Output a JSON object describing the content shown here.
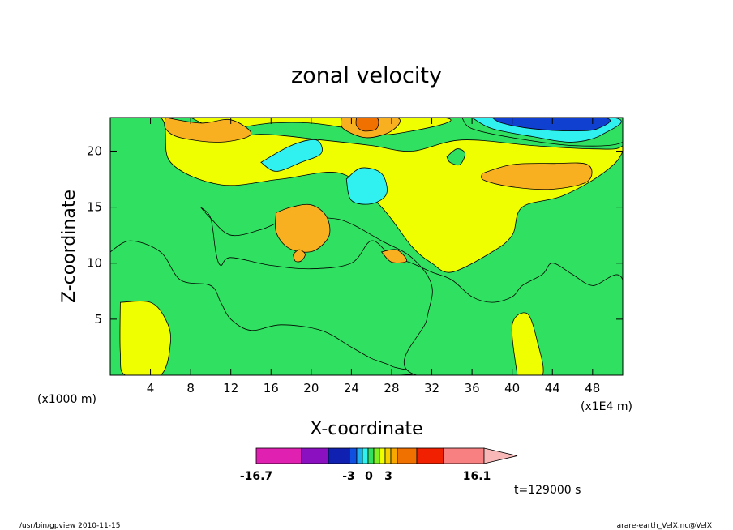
{
  "chart_data": {
    "type": "heatmap",
    "title": "zonal velocity",
    "xlabel": "X-coordinate",
    "ylabel": "Z-coordinate",
    "x_unit_label": "(x1000 m)",
    "x_scale_label": "(x1E4 m)",
    "xlim": [
      0,
      51
    ],
    "ylim": [
      0,
      23
    ],
    "xticks": [
      4,
      8,
      12,
      16,
      20,
      24,
      28,
      32,
      36,
      40,
      44,
      48
    ],
    "yticks": [
      5,
      10,
      15,
      20
    ],
    "time_label": "t=129000 s",
    "colorbar": {
      "min_label": "-16.7",
      "max_label": "16.1",
      "tick_labels": [
        "-3",
        "0",
        "3"
      ],
      "colors": [
        "#e020b0",
        "#8a10c0",
        "#1020b0",
        "#1050e0",
        "#20b0f0",
        "#30f0f0",
        "#30e060",
        "#80f020",
        "#f0ff00",
        "#f8d000",
        "#f8a800",
        "#f07000",
        "#f02000",
        "#f88080",
        "#f8b8b8"
      ]
    },
    "regions": [
      {
        "color": "#30e060",
        "pts": [
          [
            0,
            23
          ],
          [
            51,
            23
          ],
          [
            51,
            0
          ],
          [
            0,
            0
          ]
        ]
      },
      {
        "color": "#f0ff00",
        "pts": [
          [
            0,
            23
          ],
          [
            5,
            23
          ],
          [
            6,
            19
          ],
          [
            11,
            17
          ],
          [
            17,
            17.5
          ],
          [
            23,
            18
          ],
          [
            27,
            15
          ],
          [
            30,
            11.5
          ],
          [
            32,
            10
          ],
          [
            34,
            9.2
          ],
          [
            38,
            11
          ],
          [
            40,
            12.5
          ],
          [
            41,
            15
          ],
          [
            45,
            16
          ],
          [
            49,
            18
          ],
          [
            51,
            20
          ],
          [
            51,
            23
          ],
          [
            0,
            23
          ]
        ]
      },
      {
        "color": "#30e060",
        "pts": [
          [
            6,
            23
          ],
          [
            10,
            21
          ],
          [
            15,
            21.5
          ],
          [
            21,
            21
          ],
          [
            26,
            20.5
          ],
          [
            30,
            20
          ],
          [
            35,
            21
          ],
          [
            42,
            20.5
          ],
          [
            48,
            20.2
          ],
          [
            51,
            20.5
          ],
          [
            51,
            23
          ],
          [
            6,
            23
          ]
        ]
      },
      {
        "color": "#f0ff00",
        "pts": [
          [
            8,
            23
          ],
          [
            11,
            22
          ],
          [
            16,
            22.5
          ],
          [
            20,
            22.5
          ],
          [
            24,
            22
          ],
          [
            28,
            21.5
          ],
          [
            33,
            23
          ],
          [
            8,
            23
          ]
        ]
      },
      {
        "color": "#f8b020",
        "pts": [
          [
            5.5,
            23
          ],
          [
            9,
            22.5
          ],
          [
            12,
            22.8
          ],
          [
            14,
            21.5
          ],
          [
            11,
            20.8
          ],
          [
            7,
            21.2
          ],
          [
            5.5,
            22
          ],
          [
            5.5,
            23
          ]
        ]
      },
      {
        "color": "#f8b020",
        "pts": [
          [
            23,
            23
          ],
          [
            28.5,
            23
          ],
          [
            28,
            21.8
          ],
          [
            25.5,
            21.2
          ],
          [
            23.2,
            22
          ],
          [
            23,
            23
          ]
        ]
      },
      {
        "color": "#f07000",
        "pts": [
          [
            24.5,
            23
          ],
          [
            26.5,
            23
          ],
          [
            26.5,
            22
          ],
          [
            25.2,
            21.8
          ],
          [
            24.5,
            22.3
          ],
          [
            24.5,
            23
          ]
        ]
      },
      {
        "color": "#30e060",
        "pts": [
          [
            35,
            23
          ],
          [
            51,
            23
          ],
          [
            51,
            20.8
          ],
          [
            46,
            20.5
          ],
          [
            40,
            21.2
          ],
          [
            36,
            22
          ],
          [
            35,
            23
          ]
        ]
      },
      {
        "color": "#30f0f0",
        "pts": [
          [
            36,
            23
          ],
          [
            50,
            23
          ],
          [
            49,
            21.5
          ],
          [
            46,
            20.8
          ],
          [
            42,
            21.3
          ],
          [
            38,
            22
          ],
          [
            36,
            23
          ]
        ]
      },
      {
        "color": "#1040d0",
        "pts": [
          [
            38,
            23
          ],
          [
            49,
            23
          ],
          [
            48.5,
            22
          ],
          [
            46,
            21.8
          ],
          [
            42,
            22
          ],
          [
            39,
            22.5
          ],
          [
            38,
            23
          ]
        ]
      },
      {
        "color": "#30f0f0",
        "pts": [
          [
            15,
            19
          ],
          [
            18,
            20.5
          ],
          [
            20.5,
            21
          ],
          [
            21,
            19.8
          ],
          [
            19,
            19
          ],
          [
            16.5,
            18.2
          ],
          [
            15,
            19
          ]
        ]
      },
      {
        "color": "#30f0f0",
        "pts": [
          [
            23.5,
            17.5
          ],
          [
            25,
            18.5
          ],
          [
            27,
            18
          ],
          [
            27.5,
            16.2
          ],
          [
            26,
            15.3
          ],
          [
            24,
            15.6
          ],
          [
            23.5,
            17.5
          ]
        ]
      },
      {
        "color": "#30e060",
        "pts": [
          [
            33.5,
            19.5
          ],
          [
            34.5,
            20.2
          ],
          [
            35.3,
            19.8
          ],
          [
            34.8,
            18.8
          ],
          [
            33.8,
            19
          ],
          [
            33.5,
            19.5
          ]
        ]
      },
      {
        "color": "#f8b020",
        "pts": [
          [
            37,
            18
          ],
          [
            40,
            18.8
          ],
          [
            44,
            18.9
          ],
          [
            47.5,
            18.8
          ],
          [
            47.5,
            17.3
          ],
          [
            44,
            16.6
          ],
          [
            40,
            16.8
          ],
          [
            37.2,
            17.4
          ],
          [
            37,
            18
          ]
        ]
      },
      {
        "color": "#30e060",
        "pts": [
          [
            0,
            11
          ],
          [
            2,
            12
          ],
          [
            5,
            11
          ],
          [
            7,
            8.5
          ],
          [
            10,
            8
          ],
          [
            11,
            6.5
          ],
          [
            12,
            5
          ],
          [
            14,
            4
          ],
          [
            17,
            4.5
          ],
          [
            21,
            4
          ],
          [
            24,
            2.5
          ],
          [
            26,
            1.5
          ],
          [
            28,
            0.8
          ],
          [
            28.5,
            0
          ],
          [
            0,
            0
          ],
          [
            0,
            11
          ]
        ]
      },
      {
        "color": "#30e060",
        "pts": [
          [
            9,
            15
          ],
          [
            10,
            14
          ],
          [
            10.5,
            11
          ],
          [
            11,
            9.8
          ],
          [
            12,
            10.5
          ],
          [
            16,
            9.8
          ],
          [
            20,
            9.5
          ],
          [
            24,
            10
          ],
          [
            26,
            12
          ],
          [
            28,
            10.6
          ],
          [
            30,
            10
          ],
          [
            32,
            9.2
          ],
          [
            34,
            8.5
          ],
          [
            36,
            7
          ],
          [
            38,
            6.5
          ],
          [
            40,
            7
          ],
          [
            41,
            8
          ],
          [
            43,
            9
          ],
          [
            44,
            10
          ],
          [
            46,
            9
          ],
          [
            48,
            8
          ],
          [
            51,
            8.5
          ],
          [
            51,
            0
          ],
          [
            30.5,
            0
          ],
          [
            31.5,
            5
          ],
          [
            32,
            8
          ],
          [
            30,
            10.5
          ],
          [
            27,
            12
          ],
          [
            24,
            13.5
          ],
          [
            22,
            14
          ],
          [
            18,
            14
          ],
          [
            15,
            13
          ],
          [
            12,
            12.5
          ],
          [
            10,
            14
          ],
          [
            9,
            15
          ]
        ]
      },
      {
        "color": "#f0ff00",
        "pts": [
          [
            1,
            6.5
          ],
          [
            4,
            6.5
          ],
          [
            5.5,
            5
          ],
          [
            6,
            3
          ],
          [
            5,
            0
          ],
          [
            1.5,
            0
          ],
          [
            1,
            2
          ],
          [
            1,
            6.5
          ]
        ]
      },
      {
        "color": "#f0ff00",
        "pts": [
          [
            40.5,
            0
          ],
          [
            43,
            0
          ],
          [
            42.5,
            3
          ],
          [
            41.5,
            5.5
          ],
          [
            40,
            4.5
          ],
          [
            40.5,
            0
          ]
        ]
      },
      {
        "color": "#f8b020",
        "pts": [
          [
            16.5,
            14.5
          ],
          [
            18,
            15
          ],
          [
            20,
            15.2
          ],
          [
            21.5,
            14.2
          ],
          [
            21.8,
            12.5
          ],
          [
            20.5,
            11.2
          ],
          [
            19,
            11
          ],
          [
            17.5,
            11.5
          ],
          [
            16.5,
            12.8
          ],
          [
            16.5,
            14.5
          ]
        ]
      },
      {
        "color": "#f8b020",
        "pts": [
          [
            18.2,
            10.8
          ],
          [
            18.8,
            11.2
          ],
          [
            19.4,
            10.8
          ],
          [
            19,
            10.2
          ],
          [
            18.4,
            10.2
          ],
          [
            18.2,
            10.8
          ]
        ]
      },
      {
        "color": "#f8b020",
        "pts": [
          [
            27,
            11
          ],
          [
            28.5,
            11.2
          ],
          [
            29.5,
            10.2
          ],
          [
            28,
            10.1
          ],
          [
            27,
            11
          ]
        ]
      }
    ]
  },
  "footer": {
    "left_text": "/usr/bin/gpview  2010-11-15",
    "right_text": "arare-earth_VelX.nc@VelX"
  }
}
